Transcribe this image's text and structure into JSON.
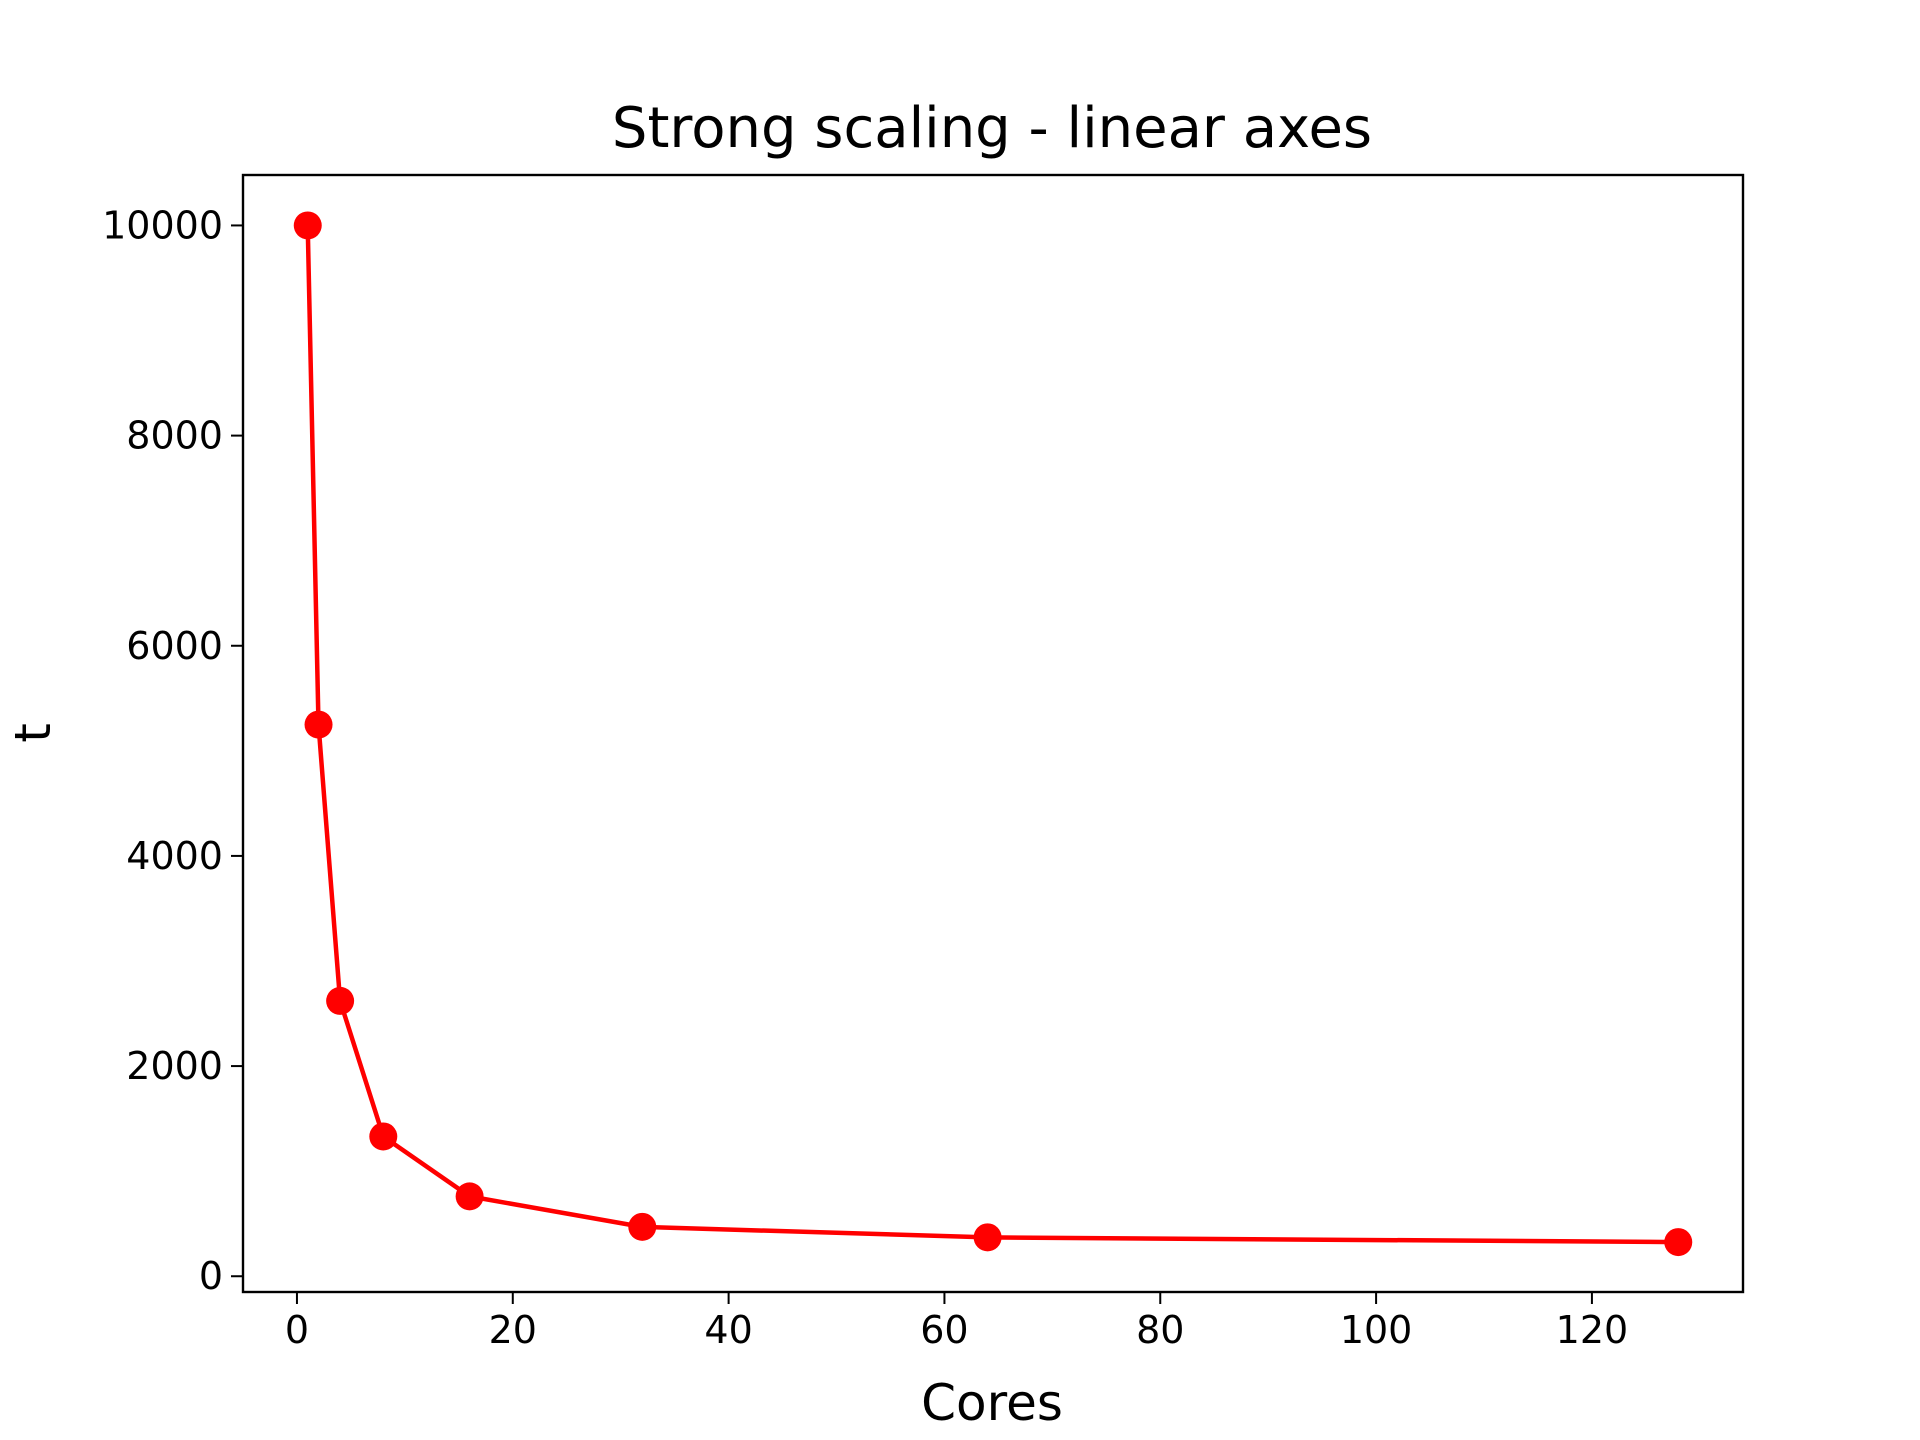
{
  "chart_data": {
    "type": "line",
    "title": "Strong scaling - linear axes",
    "xlabel": "Cores",
    "ylabel": "t",
    "x": [
      1,
      2,
      4,
      8,
      16,
      32,
      64,
      128
    ],
    "series": [
      {
        "values": [
          10000,
          5250,
          2620,
          1330,
          760,
          470,
          370,
          325
        ]
      }
    ],
    "xlim": [
      -5,
      134
    ],
    "ylim": [
      -150,
      10480
    ],
    "xticks": [
      0,
      20,
      40,
      60,
      80,
      100,
      120
    ],
    "xtick_labels": [
      "0",
      "20",
      "40",
      "60",
      "80",
      "100",
      "120"
    ],
    "yticks": [
      0,
      2000,
      4000,
      6000,
      8000,
      10000
    ],
    "ytick_labels": [
      "0",
      "2000",
      "4000",
      "6000",
      "8000",
      "10000"
    ],
    "grid": false,
    "legend": "none",
    "colors": {
      "series": "#ff0000",
      "axes": "#000000",
      "background": "#ffffff"
    },
    "marker": "circle"
  }
}
